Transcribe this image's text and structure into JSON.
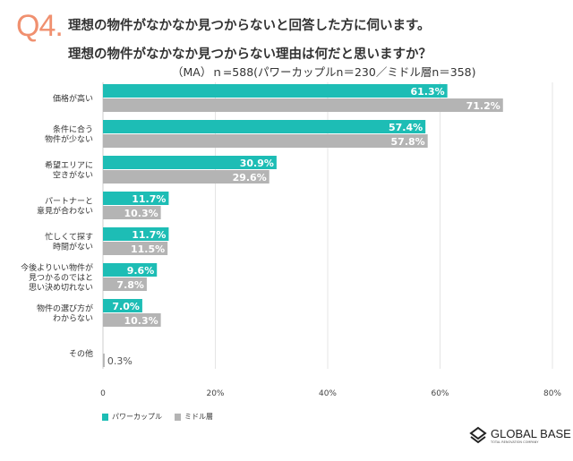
{
  "header": {
    "q_label": "Q4.",
    "title_line1": "理想の物件がなかなか見つからないと回答した方に伺います。",
    "title_line2": "理想の物件がなかなか見つからない理由は何だと思いますか？",
    "sample_note": "（MA）ｎ=588(パワーカップルn＝230／ミドル層n＝358)"
  },
  "chart_data": {
    "type": "bar",
    "orientation": "horizontal",
    "categories": [
      [
        "価格が高い"
      ],
      [
        "条件に合う",
        "物件が少ない"
      ],
      [
        "希望エリアに",
        "空きがない"
      ],
      [
        "パートナーと",
        "意見が合わない"
      ],
      [
        "忙しくて探す",
        "時間がない"
      ],
      [
        "今後よりいい物件が",
        "見つかるのではと",
        "思い決め切れない"
      ],
      [
        "物件の選び方が",
        "わからない"
      ],
      [
        "その他"
      ]
    ],
    "series": [
      {
        "name": "パワーカップル",
        "color": "#1dbdb5",
        "values": [
          61.3,
          57.4,
          30.9,
          11.7,
          11.7,
          9.6,
          7.0,
          null
        ],
        "labels": [
          "61.3%",
          "57.4%",
          "30.9%",
          "11.7%",
          "11.7%",
          "9.6%",
          "7.0%",
          ""
        ]
      },
      {
        "name": "ミドル層",
        "color": "#b4b4b4",
        "values": [
          71.2,
          57.8,
          29.6,
          10.3,
          11.5,
          7.8,
          10.3,
          0.3
        ],
        "labels": [
          "71.2%",
          "57.8%",
          "29.6%",
          "10.3%",
          "11.5%",
          "7.8%",
          "10.3%",
          "0.3%"
        ]
      }
    ],
    "xlim": [
      0,
      80
    ],
    "xticks": [
      "0",
      "20%",
      "40%",
      "60%",
      "80%"
    ],
    "grid": true,
    "legend_position": "bottom-left"
  },
  "brand": {
    "name": "GLOBAL BASE",
    "tagline": "TOTAL RENOVATION COMPANY"
  }
}
